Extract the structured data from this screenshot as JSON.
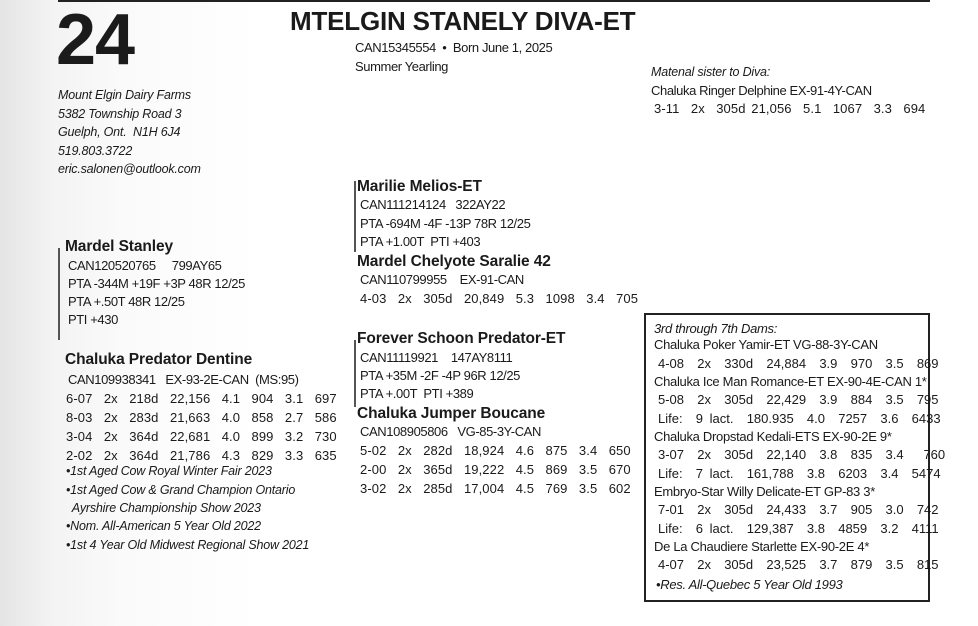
{
  "lot_number": "24",
  "animal": {
    "name": "MTELGIN STANELY DIVA-ET",
    "id_line": "CAN15345554  •  Born June 1, 2025",
    "class": "Summer Yearling"
  },
  "consignor": {
    "farm": "Mount Elgin Dairy Farms",
    "address1": "5382 Township Road 3",
    "address2": "Guelph, Ont.  N1H 6J4",
    "phone": "519.803.3722",
    "email": "eric.salonen@outlook.com"
  },
  "maternal_sister": {
    "heading": "Matenal sister to Diva:",
    "name": "Chaluka Ringer Delphine EX-91-4Y-CAN",
    "record": "3-11  2x  305d 21,056  5.1  1067  3.3  694"
  },
  "sire": {
    "name": "Mardel Stanley",
    "lines": [
      "CAN120520765     799AY65",
      "PTA -344M +19F +3P 48R 12/25",
      "PTA +.50T 48R 12/25",
      "PTI +430"
    ]
  },
  "sire_sire": {
    "name": "Marilie Melios-ET",
    "lines": [
      "CAN111214124   322AY22",
      "PTA -694M -4F -13P 78R 12/25",
      "PTA +1.00T  PTI +403"
    ]
  },
  "sire_dam": {
    "name": "Mardel Chelyote Saralie 42",
    "lines": [
      "CAN110799955    EX-91-CAN",
      "4-03  2x  305d  20,849  5.3  1098  3.4  705"
    ]
  },
  "dam": {
    "name": "Chaluka Predator Dentine",
    "lines": [
      "CAN109938341   EX-93-2E-CAN  (MS:95)",
      "6-07  2x  218d  22,156  4.1  904  3.1  697",
      "8-03  2x  283d  21,663  4.0  858  2.7  586",
      "3-04  2x  364d  22,681  4.0  899  3.2  730",
      "2-02  2x  364d  21,786  4.3  829  3.3  635"
    ],
    "awards": [
      "•1st Aged Cow Royal Winter Fair 2023",
      "•1st Aged Cow & Grand Champion Ontario",
      " Ayrshire Championship Show 2023",
      "•Nom. All-American 5 Year Old 2022",
      "•1st 4 Year Old Midwest Regional Show 2021"
    ]
  },
  "dam_sire": {
    "name": "Forever Schoon Predator-ET",
    "lines": [
      "CAN11119921    147AY8111",
      "PTA +35M -2F -4P 96R 12/25",
      "PTA +.00T  PTI +389"
    ]
  },
  "dam_dam": {
    "name": "Chaluka Jumper Boucane",
    "lines": [
      "CAN108905806   VG-85-3Y-CAN",
      "5-02  2x  282d  18,924  4.6  875  3.4  650",
      "2-00  2x  365d  19,222  4.5  869  3.5  670",
      "3-02  2x  285d  17,004  4.5  769  3.5  602"
    ]
  },
  "dams_box": {
    "heading": "3rd through 7th Dams:",
    "lines": [
      "Chaluka Poker Yamir-ET VG-88-3Y-CAN",
      "4-08  2x  330d  24,884  3.9  970  3.5  869",
      "Chaluka Ice Man Romance-ET EX-90-4E-CAN 1*",
      "5-08  2x  305d  22,429  3.9  884  3.5  795",
      "Life:  9 lact.  180.935  4.0  7257  3.6  6433",
      "Chaluka Dropstad Kedali-ETS EX-90-2E 9*",
      "3-07  2x  305d  22,140  3.8  835  3.4   760",
      "Life:  7 lact.  161,788  3.8  6203  3.4  5474",
      "Embryo-Star Willy Delicate-ET GP-83 3*",
      "7-01  2x  305d  24,433  3.7  905  3.0  742",
      "Life:  6 lact.  129,387  3.8  4859  3.2  4111",
      "De La Chaudiere Starlette EX-90-2E 4*",
      "4-07  2x  305d  23,525  3.7  879  3.5  815"
    ],
    "note": "•Res. All-Quebec 5 Year Old 1993"
  }
}
